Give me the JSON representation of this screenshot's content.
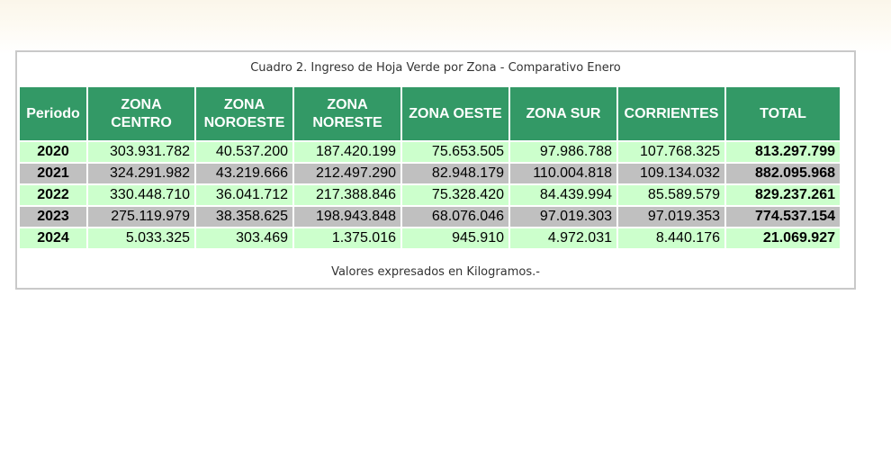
{
  "table": {
    "caption": "Cuadro 2. Ingreso de Hoja Verde por Zona - Comparativo  Enero",
    "columns": [
      "Periodo",
      "ZONA CENTRO",
      "ZONA NOROESTE",
      "ZONA NORESTE",
      "ZONA OESTE",
      "ZONA SUR",
      "CORRIENTES",
      "TOTAL"
    ],
    "rows": [
      [
        "2020",
        "303.931.782",
        "40.537.200",
        "187.420.199",
        "75.653.505",
        "97.986.788",
        "107.768.325",
        "813.297.799"
      ],
      [
        "2021",
        "324.291.982",
        "43.219.666",
        "212.497.290",
        "82.948.179",
        "110.004.818",
        "109.134.032",
        "882.095.968"
      ],
      [
        "2022",
        "330.448.710",
        "36.041.712",
        "217.388.846",
        "75.328.420",
        "84.439.994",
        "85.589.579",
        "829.237.261"
      ],
      [
        "2023",
        "275.119.979",
        "38.358.625",
        "198.943.848",
        "68.076.046",
        "97.019.303",
        "97.019.353",
        "774.537.154"
      ],
      [
        "2024",
        "5.033.325",
        "303.469",
        "1.375.016",
        "945.910",
        "4.972.031",
        "8.440.176",
        "21.069.927"
      ]
    ],
    "footnote": "Valores expresados en Kilogramos.-"
  },
  "colors": {
    "header_bg": "#339966",
    "row_light": "#ccffcc",
    "row_gray": "#c0c0c0"
  }
}
